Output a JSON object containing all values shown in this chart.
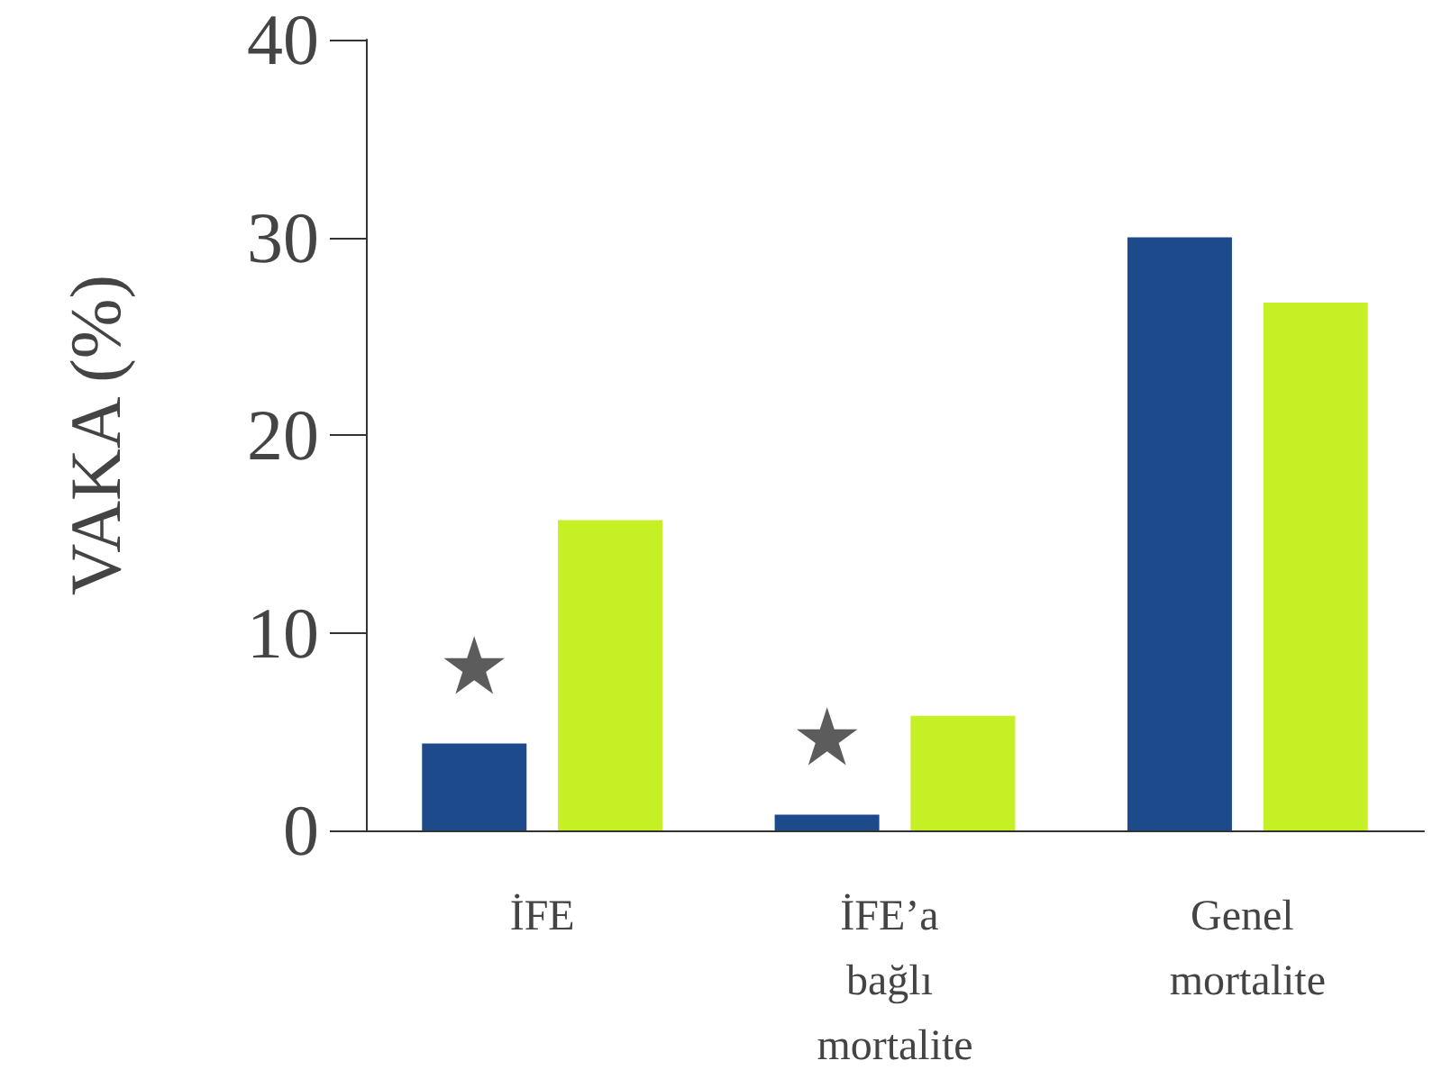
{
  "chart_data": {
    "type": "bar",
    "ylabel": "VAKA (%)",
    "categories": [
      "İFE",
      "İFE’a bağlı mortalite",
      "Genel mortalite"
    ],
    "series": [
      {
        "color": "#1d4a8a",
        "values": [
          4.4,
          0.8,
          30
        ]
      },
      {
        "color": "#c4f025",
        "values": [
          15.7,
          5.8,
          26.7
        ]
      }
    ],
    "ylim": [
      0,
      40
    ],
    "yticks": [
      0,
      10,
      20,
      30,
      40
    ],
    "grid": false,
    "annotations": [
      "★",
      "★"
    ]
  }
}
